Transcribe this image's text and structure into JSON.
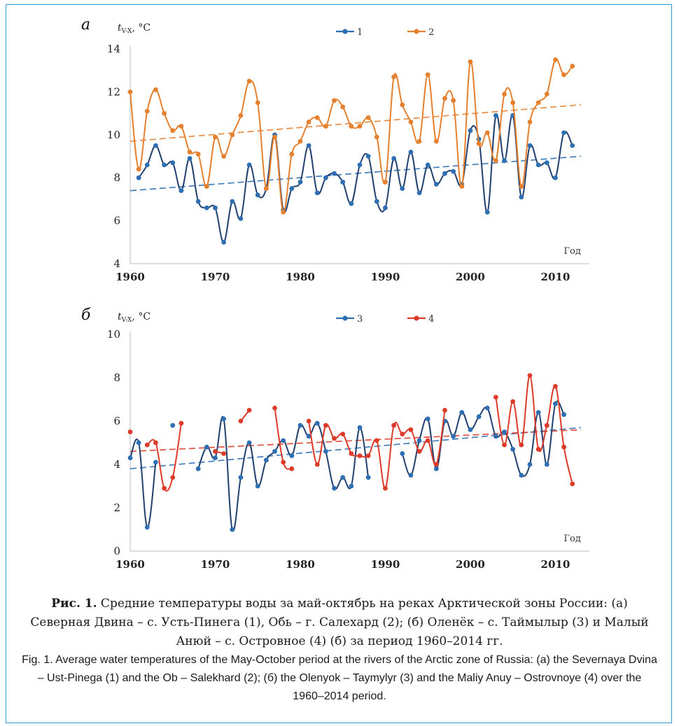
{
  "chart_data": [
    {
      "type": "line",
      "panel_label": "а",
      "ylabel": "t",
      "ylabel_sub": "V-X",
      "ylabel_unit": ", °C",
      "corner_label": "Год",
      "xlim": [
        1960,
        2014
      ],
      "ylim": [
        4,
        14
      ],
      "yticks": [
        4,
        6,
        8,
        10,
        12,
        14
      ],
      "xticks": [
        1960,
        1970,
        1980,
        1990,
        2000,
        2010
      ],
      "grid": false,
      "legend_position": "top-center",
      "series": [
        {
          "name": "1",
          "color": "#2e6fb4",
          "line_color": "#22406e",
          "trend": [
            [
              1960,
              7.4
            ],
            [
              2013,
              9.0
            ]
          ],
          "x": [
            1961,
            1962,
            1963,
            1964,
            1965,
            1966,
            1967,
            1968,
            1969,
            1970,
            1971,
            1972,
            1973,
            1974,
            1975,
            1976,
            1977,
            1978,
            1979,
            1980,
            1981,
            1982,
            1983,
            1984,
            1985,
            1986,
            1987,
            1988,
            1989,
            1990,
            1991,
            1992,
            1993,
            1994,
            1995,
            1996,
            1997,
            1998,
            1999,
            2000,
            2001,
            2002,
            2003,
            2004,
            2005,
            2006,
            2007,
            2008,
            2009,
            2010,
            2011,
            2012
          ],
          "y": [
            8.0,
            8.6,
            9.5,
            8.6,
            8.7,
            7.4,
            8.9,
            6.9,
            6.6,
            6.6,
            5.0,
            6.9,
            6.1,
            8.6,
            7.2,
            7.5,
            10.0,
            6.5,
            7.5,
            7.8,
            9.5,
            7.3,
            8.0,
            8.2,
            7.8,
            6.8,
            8.6,
            9.0,
            6.9,
            6.6,
            8.9,
            7.5,
            9.2,
            7.3,
            8.6,
            7.7,
            8.2,
            8.3,
            7.7,
            10.2,
            9.8,
            6.4,
            10.9,
            8.8,
            10.9,
            7.1,
            9.5,
            8.6,
            8.7,
            8.0,
            10.1,
            9.5
          ]
        },
        {
          "name": "2",
          "color": "#e5802e",
          "line_color": "#e5802e",
          "trend": [
            [
              1960,
              9.7
            ],
            [
              2013,
              11.4
            ]
          ],
          "x": [
            1960,
            1961,
            1962,
            1963,
            1964,
            1965,
            1966,
            1967,
            1968,
            1969,
            1970,
            1971,
            1972,
            1973,
            1974,
            1975,
            1976,
            1977,
            1978,
            1979,
            1980,
            1981,
            1982,
            1983,
            1984,
            1985,
            1986,
            1987,
            1988,
            1989,
            1990,
            1991,
            1992,
            1993,
            1994,
            1995,
            1996,
            1997,
            1998,
            1999,
            2000,
            2001,
            2002,
            2003,
            2004,
            2005,
            2006,
            2007,
            2008,
            2009,
            2010,
            2011,
            2012,
            2013
          ],
          "y": [
            12.0,
            8.4,
            11.1,
            12.1,
            11.0,
            10.2,
            10.4,
            9.2,
            9.1,
            7.6,
            9.9,
            9.0,
            10.0,
            10.9,
            12.5,
            11.5,
            7.5,
            9.9,
            6.4,
            9.1,
            9.7,
            10.6,
            10.8,
            10.4,
            11.6,
            11.3,
            10.4,
            10.4,
            10.8,
            9.9,
            7.8,
            12.7,
            11.4,
            10.6,
            9.7,
            12.8,
            9.7,
            11.7,
            11.6,
            7.6,
            13.4,
            9.6,
            10.1,
            8.8,
            11.9,
            11.5,
            7.6,
            10.6,
            11.5,
            11.9,
            13.5,
            12.8,
            13.2,
            null
          ]
        }
      ]
    },
    {
      "type": "line",
      "panel_label": "б",
      "ylabel": "t",
      "ylabel_sub": "V-X",
      "ylabel_unit": ", °C",
      "corner_label": "Год",
      "xlim": [
        1960,
        2014
      ],
      "ylim": [
        0,
        10
      ],
      "yticks": [
        0,
        2,
        4,
        6,
        8,
        10
      ],
      "xticks": [
        1960,
        1970,
        1980,
        1990,
        2000,
        2010
      ],
      "grid": false,
      "legend_position": "top-center",
      "series": [
        {
          "name": "3",
          "color": "#2e6fb4",
          "line_color": "#22406e",
          "trend": [
            [
              1960,
              3.8
            ],
            [
              2013,
              5.7
            ]
          ],
          "x": [
            1960,
            1961,
            1962,
            1963,
            1964,
            1965,
            1966,
            1967,
            1968,
            1969,
            1970,
            1971,
            1972,
            1973,
            1974,
            1975,
            1976,
            1977,
            1978,
            1979,
            1980,
            1981,
            1982,
            1983,
            1984,
            1985,
            1986,
            1987,
            1988,
            1989,
            1990,
            1991,
            1992,
            1993,
            1994,
            1995,
            1996,
            1997,
            1998,
            1999,
            2000,
            2001,
            2002,
            2003,
            2004,
            2005,
            2006,
            2007,
            2008,
            2009,
            2010,
            2011,
            2012
          ],
          "y": [
            4.3,
            5.0,
            1.1,
            4.1,
            null,
            5.8,
            null,
            null,
            3.8,
            4.8,
            4.3,
            6.1,
            1.0,
            3.4,
            5.0,
            3.0,
            4.2,
            4.6,
            5.1,
            4.4,
            5.8,
            5.3,
            5.9,
            4.6,
            2.9,
            3.4,
            3.0,
            5.7,
            3.4,
            null,
            null,
            null,
            4.5,
            3.5,
            5.1,
            6.1,
            3.8,
            6.0,
            5.3,
            6.4,
            5.6,
            6.2,
            6.6,
            5.3,
            5.5,
            4.7,
            3.5,
            4.0,
            6.4,
            4.0,
            6.8,
            6.3,
            null
          ]
        },
        {
          "name": "4",
          "color": "#dd3b2a",
          "line_color": "#dd3b2a",
          "trend": [
            [
              1960,
              4.6
            ],
            [
              2013,
              5.6
            ]
          ],
          "x": [
            1960,
            1961,
            1962,
            1963,
            1964,
            1965,
            1966,
            1967,
            1968,
            1969,
            1970,
            1971,
            1972,
            1973,
            1974,
            1975,
            1976,
            1977,
            1978,
            1979,
            1980,
            1981,
            1982,
            1983,
            1984,
            1985,
            1986,
            1987,
            1988,
            1989,
            1990,
            1991,
            1992,
            1993,
            1994,
            1995,
            1996,
            1997,
            1998,
            1999,
            2000,
            2001,
            2002,
            2003,
            2004,
            2005,
            2006,
            2007,
            2008,
            2009,
            2010,
            2011,
            2012
          ],
          "y": [
            5.5,
            null,
            4.9,
            5.0,
            2.9,
            3.4,
            5.9,
            null,
            null,
            null,
            4.6,
            4.5,
            null,
            6.0,
            6.5,
            null,
            null,
            6.6,
            4.1,
            3.8,
            null,
            6.0,
            4.0,
            5.8,
            5.2,
            5.4,
            4.5,
            4.4,
            4.4,
            5.1,
            2.9,
            5.8,
            5.4,
            5.6,
            4.6,
            5.1,
            4.0,
            6.5,
            null,
            null,
            null,
            null,
            null,
            7.1,
            4.9,
            6.9,
            4.9,
            8.1,
            4.7,
            5.8,
            7.6,
            4.8,
            3.1
          ]
        }
      ]
    }
  ],
  "caption": {
    "ru_bold": "Рис. 1.",
    "ru_text": " Средние температуры воды за май-октябрь на реках Арктической зоны России: (а) Северная Двина – с. Усть-Пинега (1), Обь – г. Салехард (2); (б) Оленёк – с. Таймылыр (3) и Малый Анюй – с. Островное (4) (б) за период 1960–2014 гг.",
    "en": "Fig. 1. Average water temperatures of the May-October period at the rivers of the Arctic zone of Russia: (а) the Severnaya Dvina – Ust-Pinega (1) and the Ob – Salekhard (2); (б) the Olenyok – Taymylyr (3) and the Maliy Anuy – Ostrovnoye (4) over the 1960–2014 period."
  }
}
